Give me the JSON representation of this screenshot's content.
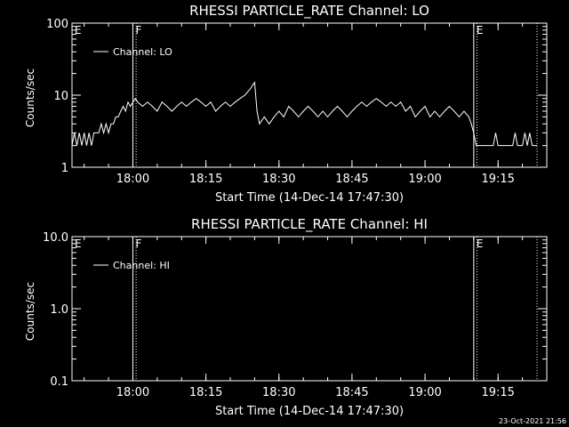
{
  "footer": {
    "timestamp": "23-Oct-2021 21:56"
  },
  "chart_data": [
    {
      "type": "line",
      "title": "RHESSI PARTICLE_RATE Channel: LO",
      "xlabel": "Start Time (14-Dec-14 17:47:30)",
      "ylabel": "Counts/sec",
      "yscale": "log",
      "ylim": [
        1,
        100
      ],
      "xlim": [
        "17:47:30",
        "19:25:00"
      ],
      "xticks": [
        "18:00",
        "18:15",
        "18:30",
        "18:45",
        "19:00",
        "19:15"
      ],
      "yticks": [
        "1",
        "10",
        "100"
      ],
      "legend": {
        "placement": "top-left",
        "entries": [
          "Channel: LO"
        ]
      },
      "grid": false,
      "markers": [
        {
          "label": "E",
          "time": "17:47:30",
          "style": "solid"
        },
        {
          "label": "F",
          "time": "18:00:00",
          "style": "solid"
        },
        {
          "label": "",
          "time": "18:00:40",
          "style": "dotted"
        },
        {
          "label": "E",
          "time": "19:10:00",
          "style": "solid"
        },
        {
          "label": "",
          "time": "19:10:40",
          "style": "dotted"
        },
        {
          "label": "",
          "time": "19:23:00",
          "style": "dotted"
        }
      ],
      "series": [
        {
          "name": "Channel: LO",
          "color": "#ffffff",
          "x": [
            "17:47:30",
            "17:48:00",
            "17:48:30",
            "17:49:00",
            "17:49:30",
            "17:50:00",
            "17:50:30",
            "17:51:00",
            "17:51:30",
            "17:52:00",
            "17:52:30",
            "17:53:00",
            "17:53:30",
            "17:54:00",
            "17:54:30",
            "17:55:00",
            "17:55:30",
            "17:56:00",
            "17:56:30",
            "17:57:00",
            "17:57:30",
            "17:58:00",
            "17:58:30",
            "17:59:00",
            "17:59:30",
            "18:00:00",
            "18:00:30",
            "18:01:00",
            "18:02:00",
            "18:03:00",
            "18:04:00",
            "18:05:00",
            "18:06:00",
            "18:07:00",
            "18:08:00",
            "18:09:00",
            "18:10:00",
            "18:11:00",
            "18:12:00",
            "18:13:00",
            "18:14:00",
            "18:15:00",
            "18:16:00",
            "18:17:00",
            "18:18:00",
            "18:19:00",
            "18:20:00",
            "18:21:00",
            "18:22:00",
            "18:23:00",
            "18:24:00",
            "18:24:40",
            "18:25:00",
            "18:25:30",
            "18:26:00",
            "18:27:00",
            "18:28:00",
            "18:29:00",
            "18:30:00",
            "18:31:00",
            "18:32:00",
            "18:33:00",
            "18:34:00",
            "18:35:00",
            "18:36:00",
            "18:37:00",
            "18:38:00",
            "18:39:00",
            "18:40:00",
            "18:41:00",
            "18:42:00",
            "18:43:00",
            "18:44:00",
            "18:45:00",
            "18:46:00",
            "18:47:00",
            "18:48:00",
            "18:49:00",
            "18:50:00",
            "18:51:00",
            "18:52:00",
            "18:53:00",
            "18:54:00",
            "18:55:00",
            "18:56:00",
            "18:57:00",
            "18:58:00",
            "18:59:00",
            "19:00:00",
            "19:01:00",
            "19:02:00",
            "19:03:00",
            "19:04:00",
            "19:05:00",
            "19:06:00",
            "19:07:00",
            "19:08:00",
            "19:09:00",
            "19:09:30",
            "19:10:00",
            "19:10:30",
            "19:11:00",
            "19:12:00",
            "19:13:00",
            "19:14:00",
            "19:14:30",
            "19:15:00",
            "19:15:30",
            "19:16:00",
            "19:17:00",
            "19:18:00",
            "19:18:30",
            "19:19:00",
            "19:19:30",
            "19:20:00",
            "19:20:30",
            "19:21:00",
            "19:21:30",
            "19:22:00",
            "19:22:30",
            "19:23:00"
          ],
          "y": [
            2,
            3,
            2,
            3,
            2,
            3,
            2,
            3,
            2,
            3,
            3,
            3,
            4,
            3,
            4,
            3,
            4,
            4,
            5,
            5,
            6,
            7,
            6,
            8,
            7,
            8,
            9,
            8,
            7,
            8,
            7,
            6,
            8,
            7,
            6,
            7,
            8,
            7,
            8,
            9,
            8,
            7,
            8,
            6,
            7,
            8,
            7,
            8,
            9,
            10,
            12,
            14,
            15,
            6,
            4,
            5,
            4,
            5,
            6,
            5,
            7,
            6,
            5,
            6,
            7,
            6,
            5,
            6,
            5,
            6,
            7,
            6,
            5,
            6,
            7,
            8,
            7,
            8,
            9,
            8,
            7,
            8,
            7,
            8,
            6,
            7,
            5,
            6,
            7,
            5,
            6,
            5,
            6,
            7,
            6,
            5,
            6,
            5,
            4,
            3,
            2,
            2,
            2,
            2,
            2,
            3,
            2,
            2,
            2,
            2,
            2,
            3,
            2,
            2,
            2,
            3,
            2,
            3,
            2,
            2,
            2
          ]
        }
      ]
    },
    {
      "type": "line",
      "title": "RHESSI PARTICLE_RATE Channel: HI",
      "xlabel": "Start Time (14-Dec-14 17:47:30)",
      "ylabel": "Counts/sec",
      "yscale": "log",
      "ylim": [
        0.1,
        10
      ],
      "xlim": [
        "17:47:30",
        "19:25:00"
      ],
      "xticks": [
        "18:00",
        "18:15",
        "18:30",
        "18:45",
        "19:00",
        "19:15"
      ],
      "yticks": [
        "0.1",
        "1.0",
        "10.0"
      ],
      "legend": {
        "placement": "top-left",
        "entries": [
          "Channel: HI"
        ]
      },
      "grid": false,
      "markers": [
        {
          "label": "E",
          "time": "17:47:30",
          "style": "solid"
        },
        {
          "label": "F",
          "time": "18:00:00",
          "style": "solid"
        },
        {
          "label": "",
          "time": "18:00:40",
          "style": "dotted"
        },
        {
          "label": "E",
          "time": "19:10:00",
          "style": "solid"
        },
        {
          "label": "",
          "time": "19:10:40",
          "style": "dotted"
        },
        {
          "label": "",
          "time": "19:23:00",
          "style": "dotted"
        }
      ],
      "series": [
        {
          "name": "Channel: HI",
          "color": "#ffffff",
          "x": [],
          "y": []
        }
      ]
    }
  ]
}
